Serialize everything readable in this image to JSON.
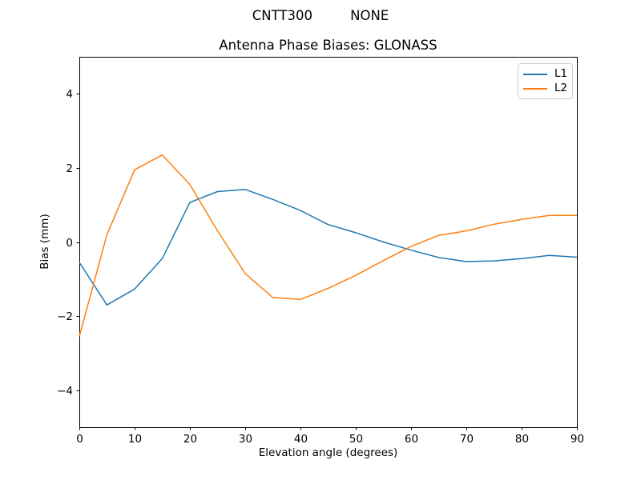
{
  "window": {
    "background": "#ffffff"
  },
  "chart_data": {
    "type": "line",
    "suptitle": "CNTT300         NONE",
    "title": "Antenna Phase Biases: GLONASS",
    "xlabel": "Elevation angle (degrees)",
    "ylabel": "Bias (mm)",
    "xlim": [
      0,
      90
    ],
    "ylim": [
      -5,
      5
    ],
    "grid": false,
    "xticks": {
      "values": [
        0,
        10,
        20,
        30,
        40,
        50,
        60,
        70,
        80,
        90
      ],
      "labels": [
        "0",
        "10",
        "20",
        "30",
        "40",
        "50",
        "60",
        "70",
        "80",
        "90"
      ]
    },
    "yticks": {
      "values": [
        -4,
        -2,
        0,
        2,
        4
      ],
      "labels": [
        "−4",
        "−2",
        "0",
        "2",
        "4"
      ]
    },
    "legend": {
      "position": "upper right"
    },
    "x": [
      0,
      5,
      10,
      15,
      20,
      25,
      30,
      35,
      40,
      45,
      50,
      55,
      60,
      65,
      70,
      75,
      80,
      85,
      90
    ],
    "series": [
      {
        "name": "L1",
        "color": "#1f77b4",
        "values": [
          -0.55,
          -1.7,
          -1.27,
          -0.45,
          1.07,
          1.36,
          1.42,
          1.15,
          0.85,
          0.47,
          0.25,
          0.0,
          -0.22,
          -0.42,
          -0.53,
          -0.51,
          -0.45,
          -0.36,
          -0.41
        ]
      },
      {
        "name": "L2",
        "color": "#ff7f0e",
        "values": [
          -2.55,
          0.2,
          1.95,
          2.35,
          1.55,
          0.3,
          -0.85,
          -1.5,
          -1.55,
          -1.25,
          -0.9,
          -0.5,
          -0.12,
          0.18,
          0.3,
          0.48,
          0.61,
          0.72,
          0.72
        ]
      }
    ],
    "axis_color": "#000000",
    "legend_border_color": "#cccccc"
  }
}
